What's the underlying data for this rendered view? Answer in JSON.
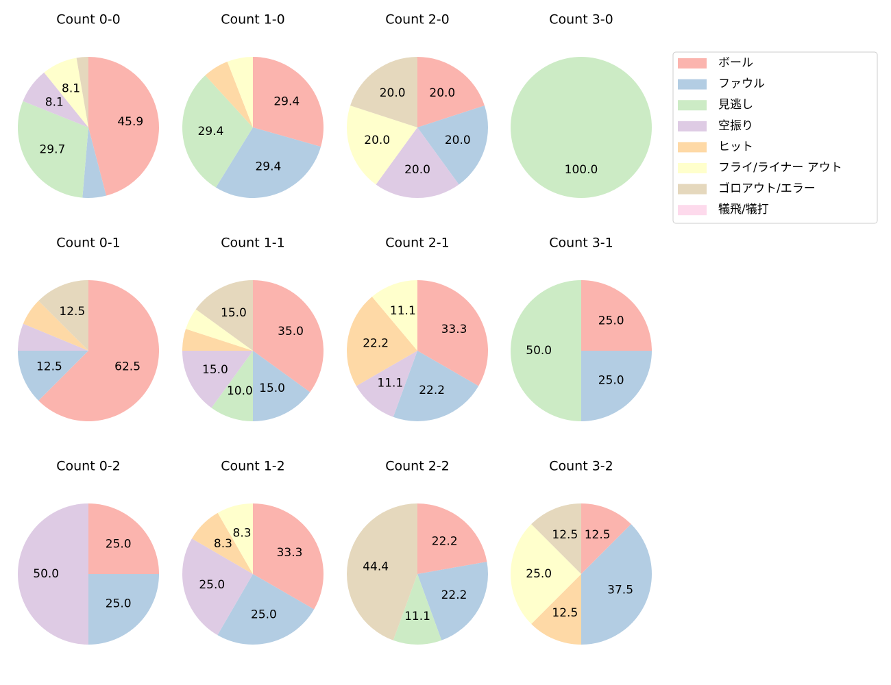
{
  "legend": {
    "labels": [
      "ボール",
      "ファウル",
      "見逃し",
      "空振り",
      "ヒット",
      "フライ/ライナー アウト",
      "ゴロアウト/エラー",
      "犠飛/犠打"
    ],
    "colors": [
      "#fbb4ae",
      "#b3cde3",
      "#ccebc5",
      "#decbe4",
      "#fed9a6",
      "#ffffcc",
      "#e5d8bd",
      "#fddaec"
    ]
  },
  "chart_data": [
    {
      "type": "pie",
      "title": "Count 0-0",
      "values": [
        45.9,
        5.4,
        29.7,
        8.1,
        0,
        8.1,
        2.7,
        0
      ],
      "value_labels": [
        "45.9",
        null,
        "29.7",
        "8.1",
        null,
        "8.1",
        null,
        null
      ]
    },
    {
      "type": "pie",
      "title": "Count 1-0",
      "values": [
        29.4,
        29.4,
        29.4,
        0,
        5.9,
        5.9,
        0,
        0
      ],
      "value_labels": [
        "29.4",
        "29.4",
        "29.4",
        null,
        null,
        null,
        null,
        null
      ]
    },
    {
      "type": "pie",
      "title": "Count 2-0",
      "values": [
        20,
        20,
        0,
        20,
        0,
        20,
        20,
        0
      ],
      "value_labels": [
        "20.0",
        "20.0",
        null,
        "20.0",
        null,
        "20.0",
        "20.0",
        null
      ]
    },
    {
      "type": "pie",
      "title": "Count 3-0",
      "values": [
        0,
        0,
        100,
        0,
        0,
        0,
        0,
        0
      ],
      "value_labels": [
        null,
        null,
        "100.0",
        null,
        null,
        null,
        null,
        null
      ]
    },
    {
      "type": "pie",
      "title": "Count 0-1",
      "values": [
        62.5,
        12.5,
        0,
        6.25,
        6.25,
        0,
        12.5,
        0
      ],
      "value_labels": [
        "62.5",
        "12.5",
        null,
        null,
        null,
        null,
        "12.5",
        null
      ]
    },
    {
      "type": "pie",
      "title": "Count 1-1",
      "values": [
        35,
        15,
        10,
        15,
        5,
        5,
        15,
        0
      ],
      "value_labels": [
        "35.0",
        "15.0",
        "10.0",
        "15.0",
        null,
        null,
        "15.0",
        null
      ]
    },
    {
      "type": "pie",
      "title": "Count 2-1",
      "values": [
        33.3,
        22.2,
        0,
        11.1,
        22.2,
        11.1,
        0,
        0
      ],
      "value_labels": [
        "33.3",
        "22.2",
        null,
        "11.1",
        "22.2",
        "11.1",
        null,
        null
      ]
    },
    {
      "type": "pie",
      "title": "Count 3-1",
      "values": [
        25,
        25,
        50,
        0,
        0,
        0,
        0,
        0
      ],
      "value_labels": [
        "25.0",
        "25.0",
        "50.0",
        null,
        null,
        null,
        null,
        null
      ]
    },
    {
      "type": "pie",
      "title": "Count 0-2",
      "values": [
        25,
        25,
        0,
        50,
        0,
        0,
        0,
        0
      ],
      "value_labels": [
        "25.0",
        "25.0",
        null,
        "50.0",
        null,
        null,
        null,
        null
      ]
    },
    {
      "type": "pie",
      "title": "Count 1-2",
      "values": [
        33.3,
        25,
        0,
        25,
        8.3,
        8.3,
        0,
        0
      ],
      "value_labels": [
        "33.3",
        "25.0",
        null,
        "25.0",
        "8.3",
        "8.3",
        null,
        null
      ]
    },
    {
      "type": "pie",
      "title": "Count 2-2",
      "values": [
        22.2,
        22.2,
        11.1,
        0,
        0,
        0,
        44.4,
        0
      ],
      "value_labels": [
        "22.2",
        "22.2",
        "11.1",
        null,
        null,
        null,
        "44.4",
        null
      ]
    },
    {
      "type": "pie",
      "title": "Count 3-2",
      "values": [
        12.5,
        37.5,
        0,
        0,
        12.5,
        25,
        12.5,
        0
      ],
      "value_labels": [
        "12.5",
        "37.5",
        null,
        null,
        "12.5",
        "25.0",
        "12.5",
        null
      ]
    }
  ]
}
